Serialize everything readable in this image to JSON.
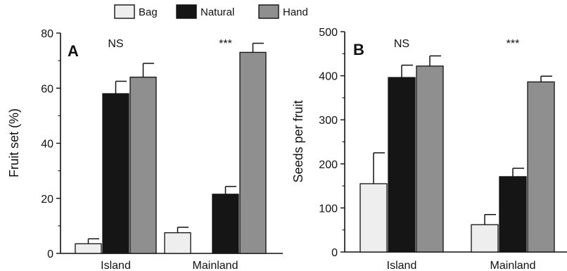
{
  "legend": {
    "items": [
      {
        "label": "Bag",
        "color": "#eeeeee"
      },
      {
        "label": "Natural",
        "color": "#151515"
      },
      {
        "label": "Hand",
        "color": "#8f8f8f"
      }
    ]
  },
  "chart_data": [
    {
      "type": "bar",
      "panel": "A",
      "title": "",
      "xlabel": "",
      "ylabel": "Fruit set (%)",
      "ylim": [
        0,
        80
      ],
      "yticks": [
        0,
        20,
        40,
        60,
        80
      ],
      "grid": false,
      "legend_placement": "top-center",
      "categories": [
        "Island",
        "Mainland"
      ],
      "series": [
        {
          "name": "Bag",
          "color": "#eeeeee",
          "values": [
            3.5,
            7.5
          ],
          "errors": [
            1.8,
            2.0
          ]
        },
        {
          "name": "Natural",
          "color": "#151515",
          "values": [
            58.0,
            21.5
          ],
          "errors": [
            4.5,
            2.8
          ]
        },
        {
          "name": "Hand",
          "color": "#8f8f8f",
          "values": [
            64.0,
            73.0
          ],
          "errors": [
            5.0,
            3.3
          ]
        }
      ],
      "annotations": [
        "NS",
        "***"
      ]
    },
    {
      "type": "bar",
      "panel": "B",
      "title": "",
      "xlabel": "",
      "ylabel": "Seeds per fruit",
      "ylim": [
        0,
        500
      ],
      "yticks": [
        0,
        100,
        200,
        300,
        400,
        500
      ],
      "grid": false,
      "categories": [
        "Island",
        "Mainland"
      ],
      "series": [
        {
          "name": "Bag",
          "color": "#eeeeee",
          "values": [
            155,
            62
          ],
          "errors": [
            70,
            23
          ]
        },
        {
          "name": "Natural",
          "color": "#151515",
          "values": [
            396,
            171
          ],
          "errors": [
            28,
            19
          ]
        },
        {
          "name": "Hand",
          "color": "#8f8f8f",
          "values": [
            422,
            386
          ],
          "errors": [
            23,
            13
          ]
        }
      ],
      "annotations": [
        "NS",
        "***"
      ]
    }
  ]
}
